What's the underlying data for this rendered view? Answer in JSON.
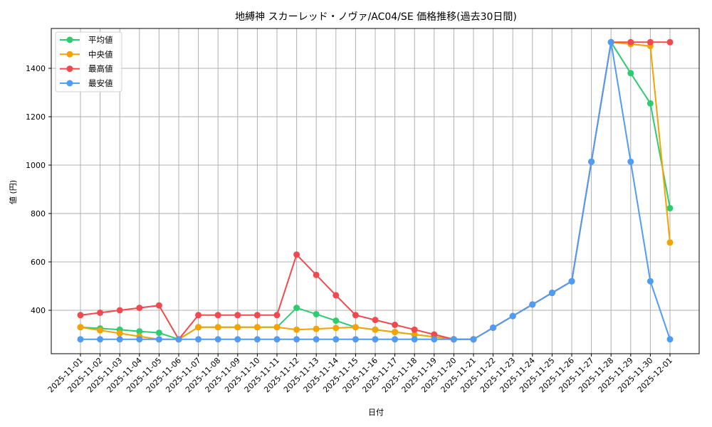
{
  "chart_data": {
    "type": "line",
    "title": "地縛神 スカーレッド・ノヴァ/AC04/SE 価格推移(過去30日間)",
    "xlabel": "日付",
    "ylabel": "値 (円)",
    "ylim": [
      220,
      1560
    ],
    "yticks": [
      400,
      600,
      800,
      1000,
      1200,
      1400
    ],
    "grid": true,
    "legend_position": "upper left",
    "categories": [
      "2025-11-01",
      "2025-11-02",
      "2025-11-03",
      "2025-11-04",
      "2025-11-05",
      "2025-11-06",
      "2025-11-07",
      "2025-11-08",
      "2025-11-09",
      "2025-11-10",
      "2025-11-11",
      "2025-11-12",
      "2025-11-13",
      "2025-11-14",
      "2025-11-15",
      "2025-11-16",
      "2025-11-17",
      "2025-11-18",
      "2025-11-19",
      "2025-11-20",
      "2025-11-21",
      "2025-11-22",
      "2025-11-23",
      "2025-11-24",
      "2025-11-25",
      "2025-11-26",
      "2025-11-27",
      "2025-11-28",
      "2025-11-29",
      "2025-11-30",
      "2025-12-01"
    ],
    "series": [
      {
        "name": "平均値",
        "color": "#2ecc71",
        "values": [
          330,
          325,
          320,
          313,
          307,
          280,
          330,
          330,
          330,
          330,
          330,
          410,
          384,
          357,
          330,
          320,
          310,
          300,
          290,
          280,
          280,
          328,
          376,
          424,
          472,
          520,
          1014,
          1508,
          1380,
          1255,
          822
        ]
      },
      {
        "name": "中央値",
        "color": "#f5a300",
        "values": [
          330,
          317,
          305,
          292,
          280,
          280,
          330,
          330,
          330,
          330,
          330,
          320,
          323,
          327,
          330,
          320,
          310,
          300,
          290,
          280,
          280,
          328,
          376,
          424,
          472,
          520,
          1014,
          1508,
          1500,
          1492,
          680
        ]
      },
      {
        "name": "最高値",
        "color": "#f04a4f",
        "values": [
          380,
          390,
          400,
          410,
          420,
          280,
          380,
          380,
          380,
          380,
          380,
          630,
          546,
          462,
          380,
          360,
          340,
          320,
          300,
          280,
          280,
          328,
          376,
          424,
          472,
          520,
          1014,
          1508,
          1508,
          1508,
          1508
        ]
      },
      {
        "name": "最安値",
        "color": "#4f9cf7",
        "values": [
          280,
          280,
          280,
          280,
          280,
          280,
          280,
          280,
          280,
          280,
          280,
          280,
          280,
          280,
          280,
          280,
          280,
          280,
          280,
          280,
          280,
          328,
          376,
          424,
          472,
          520,
          1014,
          1508,
          1014,
          520,
          280
        ]
      }
    ]
  }
}
